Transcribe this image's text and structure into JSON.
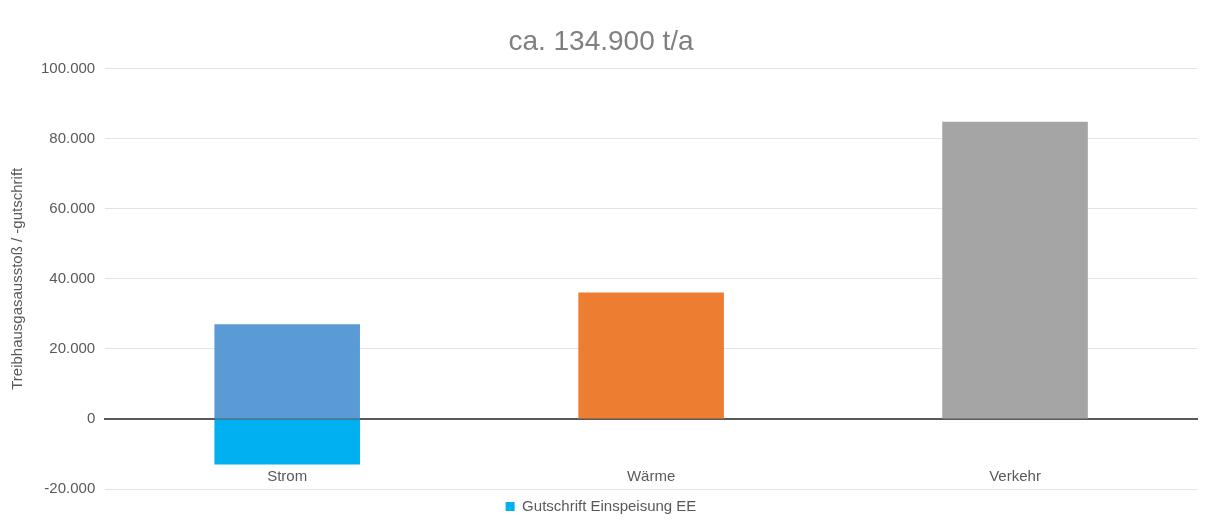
{
  "chart_data": {
    "type": "bar",
    "title": "ca. 134.900 t/a",
    "ylabel": "Treibhausgasausstoß / -gutschrift",
    "categories": [
      "Strom",
      "Wärme",
      "Verkehr"
    ],
    "series": [
      {
        "colors": [
          "#5b9bd5",
          "#ed7d31",
          "#a5a5a5"
        ],
        "values": [
          27000,
          36100,
          84800
        ]
      },
      {
        "name": "Gutschrift Einspeisung EE",
        "color": "#00b0f0",
        "values": [
          -13000,
          null,
          null
        ]
      }
    ],
    "stacked": true,
    "ylim": [
      -20000,
      100000
    ],
    "yticks": [
      {
        "value": -20000,
        "label": "-20.000"
      },
      0,
      {
        "value": 20000,
        "label": "20.000"
      },
      {
        "value": 40000,
        "label": "40.000"
      },
      {
        "value": 60000,
        "label": "60.000"
      },
      {
        "value": 80000,
        "label": "80.000"
      },
      {
        "value": 100000,
        "label": "100.000"
      }
    ],
    "grid": "y",
    "legend": "bottom"
  }
}
